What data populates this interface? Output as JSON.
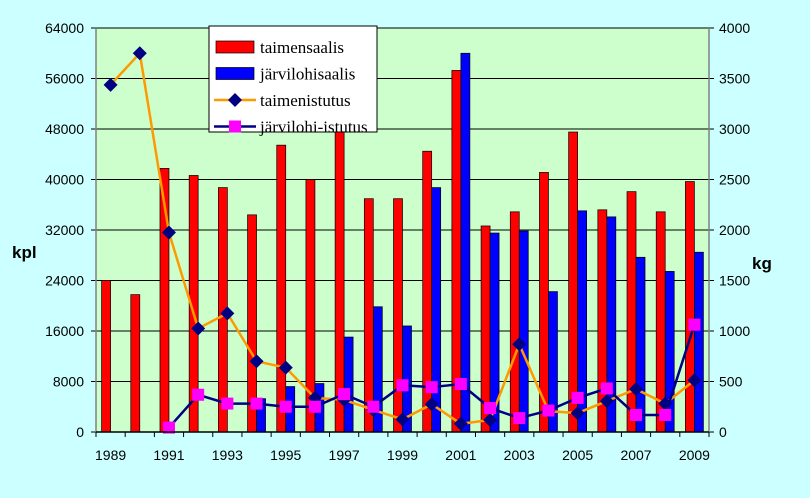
{
  "chart_data": {
    "type": "bar",
    "categories": [
      "1989",
      "1990",
      "1991",
      "1992",
      "1993",
      "1994",
      "1995",
      "1996",
      "1997",
      "1998",
      "1999",
      "2000",
      "2001",
      "2002",
      "2003",
      "2004",
      "2005",
      "2006",
      "2007",
      "2008",
      "2009"
    ],
    "x_tick_labels": [
      "1989",
      "1991",
      "1993",
      "1995",
      "1997",
      "1999",
      "2001",
      "2003",
      "2005",
      "2007",
      "2009"
    ],
    "ylabel": "kpl",
    "ylabel_right": "kg",
    "ylim": [
      0,
      64000
    ],
    "ylim_right": [
      0,
      4000
    ],
    "y_ticks": [
      0,
      8000,
      16000,
      24000,
      32000,
      40000,
      48000,
      56000,
      64000
    ],
    "y_ticks_right": [
      0,
      500,
      1000,
      1500,
      2000,
      2500,
      3000,
      3500,
      4000
    ],
    "grid": true,
    "legend_placement": "top-center",
    "series": [
      {
        "name": "taimensaalis",
        "type": "bar",
        "axis": "right",
        "color": "#ff0000",
        "values": [
          1500,
          1360,
          2610,
          2540,
          2420,
          2150,
          2840,
          2500,
          2970,
          2310,
          2310,
          2780,
          3580,
          2040,
          2180,
          2570,
          2970,
          2200,
          2380,
          2180,
          2480
        ]
      },
      {
        "name": "järvilohisaalis",
        "type": "bar",
        "axis": "right",
        "color": "#0000ff",
        "values": [
          0,
          0,
          0,
          0,
          0,
          330,
          450,
          480,
          940,
          1240,
          1050,
          2420,
          3750,
          1970,
          1990,
          1390,
          2190,
          2130,
          1730,
          1590,
          1780
        ]
      },
      {
        "name": "taimenistutus",
        "type": "line",
        "axis": "left",
        "color": "#ff9900",
        "marker": "diamond",
        "marker_color": "#000080",
        "values": [
          55000,
          60000,
          31600,
          16400,
          18800,
          11200,
          10200,
          5400,
          5100,
          3500,
          2000,
          4400,
          1300,
          1900,
          13900,
          3300,
          3000,
          4900,
          6800,
          4500,
          8200
        ]
      },
      {
        "name": "järvilohi-istutus",
        "type": "line",
        "axis": "left",
        "color": "#000080",
        "marker": "square",
        "marker_color": "#ff00ff",
        "values": [
          null,
          null,
          700,
          5900,
          4500,
          4500,
          4000,
          4000,
          6000,
          4000,
          7400,
          7100,
          7600,
          3800,
          2200,
          3400,
          5400,
          6900,
          2700,
          2700,
          17000
        ]
      }
    ],
    "colors": {
      "background": "#ccffff",
      "plot_background": "#ccffcc"
    }
  }
}
